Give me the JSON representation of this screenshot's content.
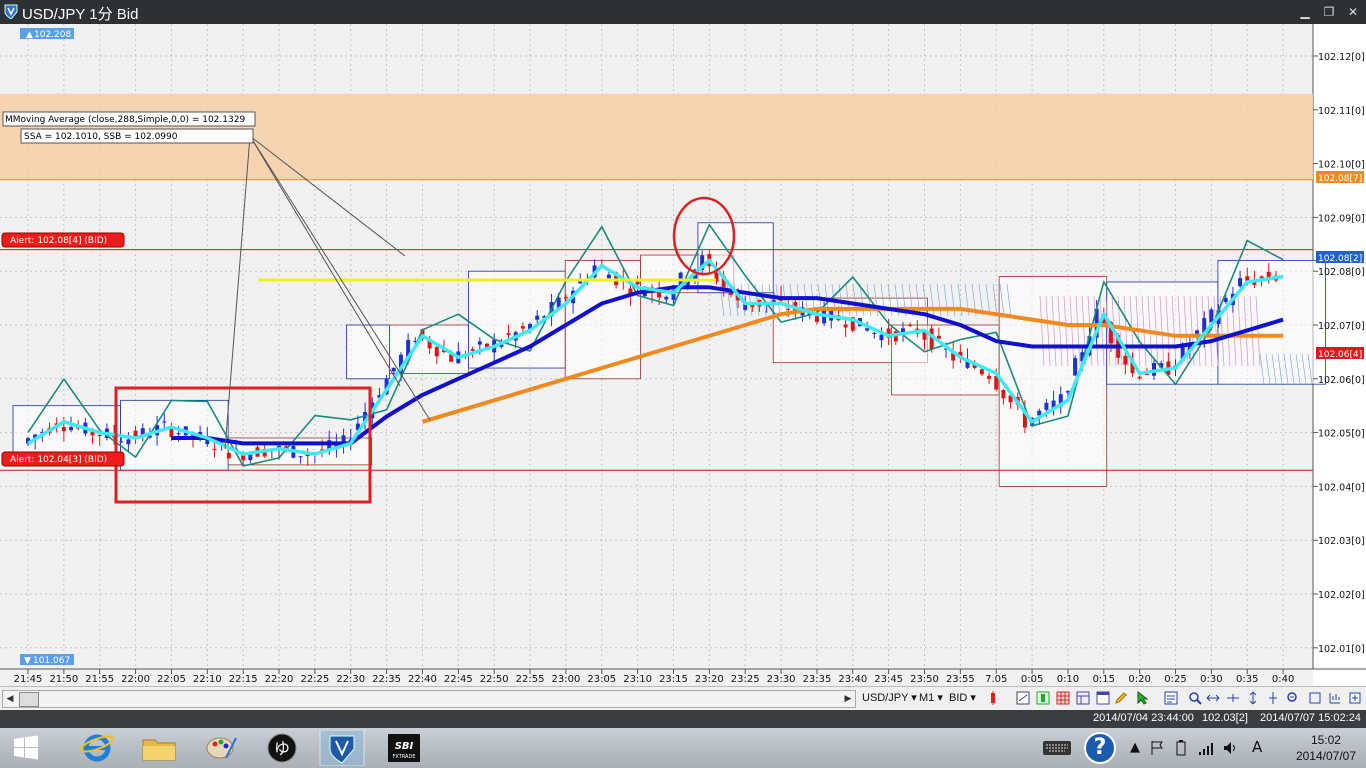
{
  "window": {
    "title": "USD/JPY 1分 Bid",
    "minimize": "▁",
    "restore": "❐",
    "close": "✕"
  },
  "chart": {
    "price_labels": [
      "102.12[0]",
      "102.11[0]",
      "102.10[0]",
      "102.09[0]",
      "102.08[0]",
      "102.07[0]",
      "102.06[0]",
      "102.05[0]",
      "102.04[0]",
      "102.03[0]",
      "102.02[0]",
      "102.01[0]"
    ],
    "price_values": [
      102.12,
      102.11,
      102.1,
      102.09,
      102.08,
      102.07,
      102.06,
      102.05,
      102.04,
      102.03,
      102.02,
      102.01
    ],
    "time_labels": [
      "21:45",
      "21:50",
      "21:55",
      "22:00",
      "22:05",
      "22:10",
      "22:15",
      "22:20",
      "22:25",
      "22:30",
      "22:35",
      "22:40",
      "22:45",
      "22:50",
      "22:55",
      "23:00",
      "23:05",
      "23:10",
      "23:15",
      "23:20",
      "23:25",
      "23:30",
      "23:35",
      "23:40",
      "23:45",
      "23:50",
      "23:55",
      "7.05",
      "0:05",
      "0:10",
      "0:15",
      "0:20",
      "0:25",
      "0:30",
      "0:35",
      "0:40"
    ],
    "high_marker": "102.208",
    "low_marker": "101.067",
    "orange_level_label": "102.08[7]",
    "current_price_label": "102.08[2]",
    "red_price_label": "102.06[4]",
    "alert_upper": "Alert: 102.08[4] (BID)",
    "alert_lower": "Alert: 102.04[3] (BID)",
    "tooltip_ma": "MMoving Average (close,288,Simple,0,0) = 102.1329",
    "tooltip_span": "SSA = 102.1010, SSB = 102.0990",
    "colors": {
      "background": "#f1f1f1",
      "bull": "#2030d0",
      "bear": "#d81818",
      "ma_cyan": "#40e8f0",
      "ma_blue": "#1010d0",
      "ma_orange": "#f08a20",
      "yellow_line": "#f0f020",
      "annotation_red": "#e02020",
      "orange_band": "#f7cfa6"
    }
  },
  "toolbar": {
    "symbol": "USD/JPY ▾",
    "period": "M1 ▾",
    "side": "BID ▾",
    "scroll_left": "◀",
    "scroll_right": "▶"
  },
  "status": {
    "left_time": "2014/07/04 23:44:00",
    "left_price": "102.03[2]",
    "right_time": "2014/07/07 15:02:24"
  },
  "taskbar": {
    "time": "15:02",
    "date": "2014/07/07",
    "ime": "A",
    "help": "?"
  },
  "chart_data": {
    "type": "candlestick",
    "symbol": "USD/JPY",
    "timeframe": "1分",
    "ylim": [
      102.005,
      102.125
    ],
    "x": [
      "21:45",
      "21:50",
      "21:55",
      "22:00",
      "22:05",
      "22:10",
      "22:15",
      "22:20",
      "22:25",
      "22:30",
      "22:35",
      "22:40",
      "22:45",
      "22:50",
      "22:55",
      "23:00",
      "23:05",
      "23:10",
      "23:15",
      "23:20",
      "23:25",
      "23:30",
      "23:35",
      "23:40",
      "23:45",
      "23:50",
      "23:55",
      "7.05",
      "0:05",
      "0:10",
      "0:15",
      "0:20",
      "0:25",
      "0:30",
      "0:35",
      "0:40"
    ],
    "series": [
      {
        "values": [
          102.048,
          102.052,
          102.05,
          102.049,
          102.051,
          102.049,
          102.046,
          102.047,
          102.046,
          102.048,
          102.058,
          102.068,
          102.064,
          102.066,
          102.069,
          102.074,
          102.081,
          102.077,
          102.076,
          102.082,
          102.074,
          102.074,
          102.072,
          102.071,
          102.068,
          102.069,
          102.064,
          102.061,
          102.052,
          102.056,
          102.072,
          102.061,
          102.062,
          102.07,
          102.078,
          102.079
        ]
      },
      {
        "values": [
          102.047,
          102.048,
          102.048,
          102.049,
          102.049,
          102.049,
          102.048,
          102.048,
          102.048,
          102.048,
          102.053,
          102.057,
          102.06,
          102.063,
          102.066,
          102.07,
          102.074,
          102.076,
          102.077,
          102.077,
          102.076,
          102.075,
          102.075,
          102.074,
          102.073,
          102.072,
          102.07,
          102.067,
          102.066,
          102.066,
          102.066,
          102.066,
          102.066,
          102.067,
          102.069,
          102.071
        ]
      },
      {
        "values": [
          null,
          null,
          null,
          null,
          null,
          null,
          null,
          null,
          null,
          null,
          null,
          102.052,
          102.054,
          102.056,
          102.058,
          102.06,
          102.062,
          102.064,
          102.066,
          102.068,
          102.07,
          102.072,
          102.073,
          102.073,
          102.073,
          102.073,
          102.073,
          102.072,
          102.071,
          102.07,
          102.07,
          102.069,
          102.068,
          102.068,
          102.068,
          102.068
        ]
      }
    ],
    "horizontal_lines": [
      102.084,
      102.043
    ],
    "shaded_band": [
      102.097,
      102.113
    ]
  }
}
